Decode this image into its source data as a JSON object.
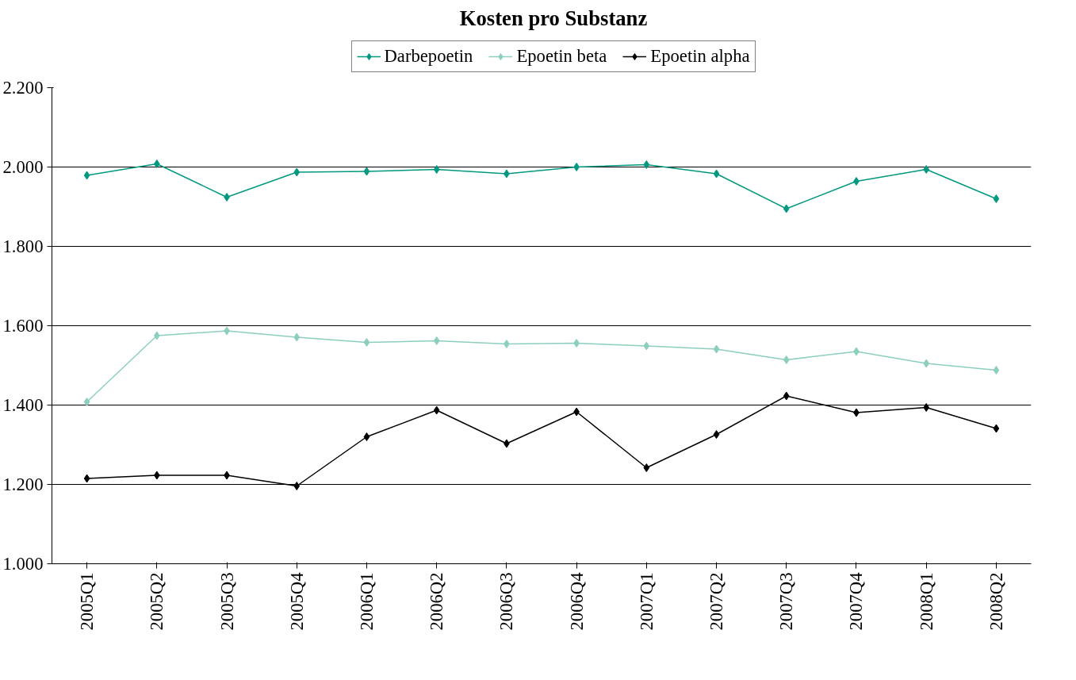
{
  "chart_data": {
    "type": "line",
    "title": "Kosten pro Substanz",
    "categories": [
      "2005Q1",
      "2005Q2",
      "2005Q3",
      "2005Q4",
      "2006Q1",
      "2006Q2",
      "2006Q3",
      "2006Q4",
      "2007Q1",
      "2007Q2",
      "2007Q3",
      "2007Q4",
      "2008Q1",
      "2008Q2"
    ],
    "series": [
      {
        "name": "Darbepoetin",
        "color": "#009980",
        "values": [
          1.979,
          2.008,
          1.924,
          1.987,
          1.989,
          1.994,
          1.983,
          2.0,
          2.006,
          1.983,
          1.895,
          1.964,
          1.994,
          1.92
        ]
      },
      {
        "name": "Epoetin beta",
        "color": "#8ccfbf",
        "values": [
          1.408,
          1.575,
          1.587,
          1.571,
          1.558,
          1.562,
          1.554,
          1.556,
          1.549,
          1.541,
          1.514,
          1.535,
          1.505,
          1.488
        ]
      },
      {
        "name": "Epoetin alpha",
        "color": "#000000",
        "values": [
          1.215,
          1.223,
          1.223,
          1.196,
          1.32,
          1.387,
          1.303,
          1.383,
          1.242,
          1.326,
          1.423,
          1.381,
          1.394,
          1.341
        ]
      }
    ],
    "ylim": [
      1.0,
      2.2
    ],
    "yticks": [
      {
        "value": 1.0,
        "label": "1.000"
      },
      {
        "value": 1.2,
        "label": "1.200"
      },
      {
        "value": 1.4,
        "label": "1.400"
      },
      {
        "value": 1.6,
        "label": "1.600"
      },
      {
        "value": 1.8,
        "label": "1.800"
      },
      {
        "value": 2.0,
        "label": "2.000"
      },
      {
        "value": 2.2,
        "label": "2.200"
      }
    ],
    "grid": "y",
    "legend": "top",
    "marker": "diamond",
    "line_style": "solid"
  }
}
